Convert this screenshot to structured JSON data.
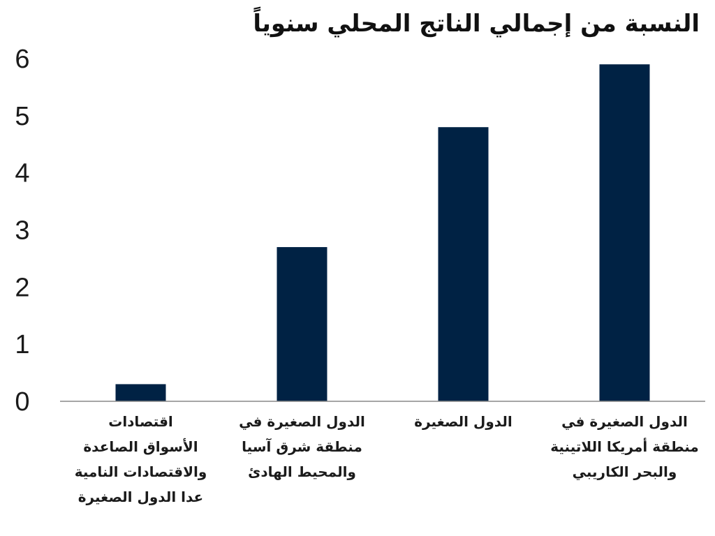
{
  "chart_data": {
    "type": "bar",
    "title": "النسبة من إجمالي الناتج المحلي سنوياً",
    "xlabel": "",
    "ylabel": "",
    "categories": [
      "اقتصادات\nالأسواق الصاعدة\nوالاقتصادات النامية\nعدا الدول الصغيرة",
      "الدول الصغيرة في\nمنطقة شرق آسيا\nوالمحيط الهادئ",
      "الدول الصغيرة",
      "الدول الصغيرة في\nمنطقة أمريكا اللاتينية\nوالبحر الكاريبي"
    ],
    "values": [
      0.3,
      2.7,
      4.8,
      5.9
    ],
    "ylim": [
      0,
      6
    ],
    "yticks": [
      "0",
      "1",
      "2",
      "3",
      "4",
      "5",
      "6"
    ],
    "grid": false,
    "legend": "none",
    "bar_color": "#002244",
    "axis_color": "#888888"
  }
}
